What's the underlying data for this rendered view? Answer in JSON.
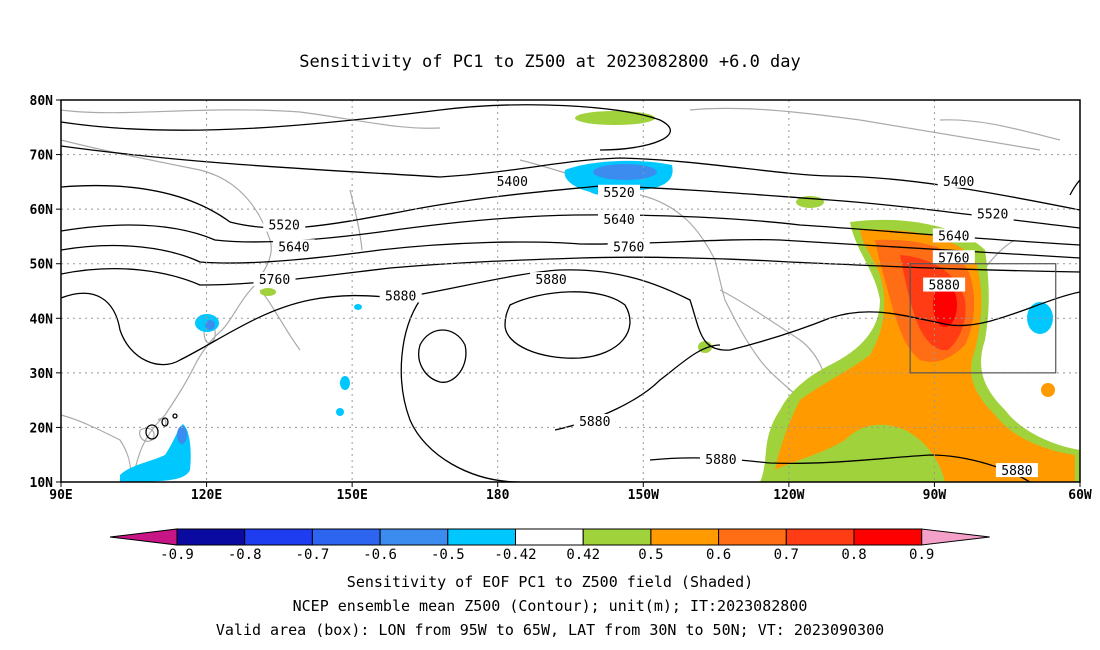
{
  "title": "Sensitivity of PC1 to Z500 at 2023082800 +6.0 day",
  "map": {
    "lon_range": [
      90,
      300
    ],
    "lat_range": [
      10,
      80
    ],
    "lon_ticks": [
      {
        "lon": 90,
        "label": "90E"
      },
      {
        "lon": 120,
        "label": "120E"
      },
      {
        "lon": 150,
        "label": "150E"
      },
      {
        "lon": 180,
        "label": "180"
      },
      {
        "lon": 210,
        "label": "150W"
      },
      {
        "lon": 240,
        "label": "120W"
      },
      {
        "lon": 270,
        "label": "90W"
      },
      {
        "lon": 300,
        "label": "60W"
      }
    ],
    "lat_ticks": [
      {
        "lat": 10,
        "label": "10N"
      },
      {
        "lat": 20,
        "label": "20N"
      },
      {
        "lat": 30,
        "label": "30N"
      },
      {
        "lat": 40,
        "label": "40N"
      },
      {
        "lat": 50,
        "label": "50N"
      },
      {
        "lat": 60,
        "label": "60N"
      },
      {
        "lat": 70,
        "label": "70N"
      },
      {
        "lat": 80,
        "label": "80N"
      }
    ],
    "grid": "dotted",
    "valid_box": {
      "lon_w": 265,
      "lon_e": 295,
      "lat_s": 30,
      "lat_n": 50
    },
    "contour_labels": [
      {
        "text": "5400",
        "lon": 183,
        "lat": 65
      },
      {
        "text": "5400",
        "lon": 275,
        "lat": 65
      },
      {
        "text": "5520",
        "lon": 136,
        "lat": 57
      },
      {
        "text": "5520",
        "lon": 205,
        "lat": 63
      },
      {
        "text": "5520",
        "lon": 282,
        "lat": 59
      },
      {
        "text": "5640",
        "lon": 138,
        "lat": 53
      },
      {
        "text": "5640",
        "lon": 205,
        "lat": 58
      },
      {
        "text": "5640",
        "lon": 274,
        "lat": 55
      },
      {
        "text": "5760",
        "lon": 134,
        "lat": 47
      },
      {
        "text": "5760",
        "lon": 207,
        "lat": 53
      },
      {
        "text": "5760",
        "lon": 274,
        "lat": 51
      },
      {
        "text": "5880",
        "lon": 160,
        "lat": 44
      },
      {
        "text": "5880",
        "lon": 191,
        "lat": 47
      },
      {
        "text": "5880",
        "lon": 272,
        "lat": 46
      },
      {
        "text": "5880",
        "lon": 200,
        "lat": 21
      },
      {
        "text": "5880",
        "lon": 226,
        "lat": 14
      },
      {
        "text": "5880",
        "lon": 287,
        "lat": 12
      }
    ],
    "contour_color": "#000000",
    "coast_color": "#aaaaaa"
  },
  "colorbar": {
    "colors": [
      "#c71585",
      "#0a0aa0",
      "#1e3cf0",
      "#2d64f0",
      "#3c8cf0",
      "#00c8ff",
      "#ffffff",
      "#a0d23c",
      "#ff9b00",
      "#ff6e14",
      "#ff3c14",
      "#ff0000",
      "#f5a0c8"
    ],
    "labels": [
      "-0.9",
      "-0.8",
      "-0.7",
      "-0.6",
      "-0.5",
      "-0.42",
      "0.42",
      "0.5",
      "0.6",
      "0.7",
      "0.8",
      "0.9"
    ]
  },
  "captions": {
    "line1": "Sensitivity of EOF PC1 to Z500 field (Shaded)",
    "line2": "NCEP ensemble mean Z500 (Contour); unit(m); IT:2023082800",
    "line3": "Valid area (box): LON from 95W to 65W, LAT from 30N to 50N; VT: 2023090300"
  }
}
